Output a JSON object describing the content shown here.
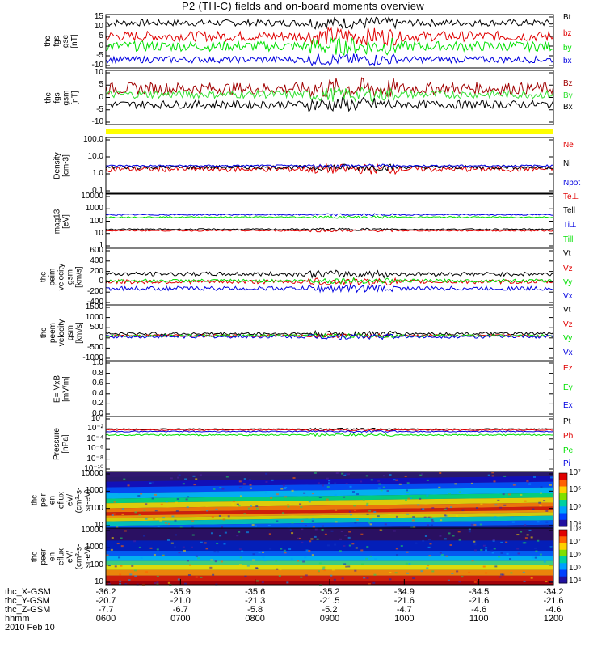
{
  "title": "P2 (TH-C) fields and on-board moments overview",
  "colors": {
    "black": "#000000",
    "red": "#e00000",
    "green": "#00e000",
    "blue": "#0000e0",
    "darkred": "#a00000",
    "brightgreen": "#30e030",
    "yellow": "#ffff00"
  },
  "chart_data": [
    {
      "type": "line",
      "ylabel": "thc\nfgs\ngse\n[nT]",
      "ylim": [
        -15,
        17
      ],
      "yticks": [
        "15",
        "10",
        "5",
        "0",
        "-5",
        "-10"
      ],
      "series": [
        {
          "name": "Bt",
          "color": "#000000",
          "base": 12,
          "noise": 2
        },
        {
          "name": "bz",
          "color": "#e00000",
          "base": 4,
          "noise": 3
        },
        {
          "name": "by",
          "color": "#00e000",
          "base": -2,
          "noise": 3
        },
        {
          "name": "bx",
          "color": "#0000e0",
          "base": -10,
          "noise": 2
        }
      ]
    },
    {
      "type": "line",
      "ylabel": "thc\nfgs\ngsm\n[nT]",
      "ylim": [
        -15,
        12
      ],
      "yticks": [
        "10",
        "5",
        "0",
        "-5",
        "-10"
      ],
      "series": [
        {
          "name": "Bz",
          "color": "#a00000",
          "base": 3,
          "noise": 3
        },
        {
          "name": "By",
          "color": "#30e030",
          "base": 0,
          "noise": 2
        },
        {
          "name": "Bx",
          "color": "#000000",
          "base": -5,
          "noise": 2
        }
      ]
    },
    {
      "type": "line",
      "ylabel": "Density\n[cm-3]",
      "log": true,
      "ylim": [
        0.1,
        100
      ],
      "yticks": [
        "100.0",
        "10.0",
        "1.0",
        "0.1"
      ],
      "series": [
        {
          "name": "Ne",
          "color": "#e00000",
          "base": 2,
          "noise": 0.3
        },
        {
          "name": "Ni",
          "color": "#000000",
          "base": 2.5,
          "noise": 0.2
        },
        {
          "name": "Npot",
          "color": "#0000e0",
          "base": 3,
          "noise": 0.1
        }
      ]
    },
    {
      "type": "line",
      "ylabel": "mag13\n[eV]",
      "log": true,
      "ylim": [
        1,
        10000
      ],
      "yticks": [
        "10000",
        "1000",
        "100",
        "10",
        "1"
      ],
      "series": [
        {
          "name": "Te⊥",
          "color": "#e00000",
          "base": 20,
          "noise": 0.1
        },
        {
          "name": "Tell",
          "color": "#000000",
          "base": 25,
          "noise": 0.1
        },
        {
          "name": "Ti⊥",
          "color": "#0000e0",
          "base": 300,
          "noise": 0.1
        },
        {
          "name": "Till",
          "color": "#00e000",
          "base": 200,
          "noise": 0.1
        }
      ]
    },
    {
      "type": "line",
      "ylabel": "thc\npeim\nvelocity\ngsm\n[km/s]",
      "ylim": [
        -450,
        650
      ],
      "yticks": [
        "600",
        "400",
        "200",
        "0",
        "-200",
        "-400"
      ],
      "series": [
        {
          "name": "Vt",
          "color": "#000000",
          "base": 150,
          "noise": 40
        },
        {
          "name": "Vz",
          "color": "#e00000",
          "base": 0,
          "noise": 40
        },
        {
          "name": "Vy",
          "color": "#00e000",
          "base": 20,
          "noise": 30
        },
        {
          "name": "Vx",
          "color": "#0000e0",
          "base": -130,
          "noise": 40
        }
      ]
    },
    {
      "type": "line",
      "ylabel": "thc\npeem\nvelocity\ngsm\n[km/s]",
      "ylim": [
        -1300,
        1600
      ],
      "yticks": [
        "1500",
        "1000",
        "500",
        "0",
        "-500",
        "-1000"
      ],
      "series": [
        {
          "name": "Vt",
          "color": "#000000",
          "base": 100,
          "noise": 80
        },
        {
          "name": "Vz",
          "color": "#e00000",
          "base": 0,
          "noise": 60
        },
        {
          "name": "Vy",
          "color": "#00e000",
          "base": 0,
          "noise": 60
        },
        {
          "name": "Vx",
          "color": "#0000e0",
          "base": -50,
          "noise": 80
        }
      ]
    },
    {
      "type": "line",
      "ylabel": "E=-VxB\n[mV/m]",
      "ylim": [
        0,
        1
      ],
      "yticks": [
        "1.0",
        "0.8",
        "0.6",
        "0.4",
        "0.2",
        "0.0"
      ],
      "series": [
        {
          "name": "Ez",
          "color": "#e00000"
        },
        {
          "name": "Ey",
          "color": "#00e000"
        },
        {
          "name": "Ex",
          "color": "#0000e0"
        }
      ]
    },
    {
      "type": "line",
      "ylabel": "Pressure\n[nPa]",
      "log": true,
      "ylim": [
        1e-10,
        10
      ],
      "yticks": [
        "10°",
        "10⁻²",
        "10⁻⁴",
        "10⁻⁶",
        "10⁻⁸",
        "10⁻¹⁰"
      ],
      "series": [
        {
          "name": "Pt",
          "color": "#000000",
          "base": 0.03,
          "noise": 0.2
        },
        {
          "name": "Pb",
          "color": "#e00000",
          "base": 0.02,
          "noise": 0.2
        },
        {
          "name": "Pe",
          "color": "#00e000",
          "base": 0.002,
          "noise": 0.3
        },
        {
          "name": "Pi",
          "color": "#0000e0",
          "base": 0.01,
          "noise": 0.2
        }
      ]
    },
    {
      "type": "heatmap",
      "ylabel": "thc\npeir\nen\neflux\neV/\n(cm²-s-\nsr-eV)",
      "log": true,
      "ylim": [
        10,
        20000
      ],
      "yticks": [
        "10000",
        "1000",
        "100",
        "10"
      ],
      "colorbar": [
        "10⁷",
        "10⁶",
        "10⁵",
        "10⁴"
      ]
    },
    {
      "type": "heatmap",
      "ylabel": "thc\npeer\nen\neflux\neV/\n(cm²-s-\nsr-eV)",
      "log": true,
      "ylim": [
        8,
        20000
      ],
      "yticks": [
        "10000",
        "1000",
        "100",
        "10"
      ],
      "colorbar": [
        "10⁸",
        "10⁷",
        "10⁶",
        "10⁵",
        "10⁴"
      ]
    }
  ],
  "xaxis": {
    "rows": [
      {
        "label": "thc_X-GSM",
        "values": [
          "-36.2",
          "-35.9",
          "-35.6",
          "-35.2",
          "-34.9",
          "-34.5",
          "-34.2"
        ]
      },
      {
        "label": "thc_Y-GSM",
        "values": [
          "-20.7",
          "-21.0",
          "-21.3",
          "-21.5",
          "-21.6",
          "-21.6",
          "-21.6"
        ]
      },
      {
        "label": "thc_Z-GSM",
        "values": [
          "-7.7",
          "-6.7",
          "-5.8",
          "-5.2",
          "-4.7",
          "-4.6",
          "-4.6"
        ]
      },
      {
        "label": "hhmm",
        "values": [
          "0600",
          "0700",
          "0800",
          "0900",
          "1000",
          "1100",
          "1200"
        ]
      }
    ],
    "date": "2010 Feb 10"
  }
}
